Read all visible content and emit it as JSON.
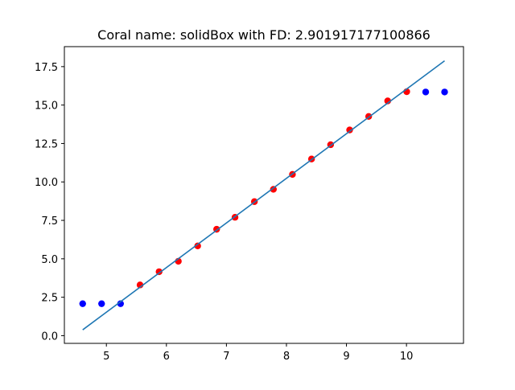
{
  "chart_data": {
    "type": "scatter",
    "title": "Coral name: solidBox with FD: 2.901917177100866",
    "xlabel": "",
    "ylabel": "",
    "xlim": [
      4.3,
      10.95
    ],
    "ylim": [
      -0.5,
      18.8
    ],
    "xticks": [
      5,
      6,
      7,
      8,
      9,
      10
    ],
    "yticks": [
      0.0,
      2.5,
      5.0,
      7.5,
      10.0,
      12.5,
      15.0,
      17.5
    ],
    "ytick_labels": [
      "0.0",
      "2.5",
      "5.0",
      "7.5",
      "10.0",
      "12.5",
      "15.0",
      "17.5"
    ],
    "grid": false,
    "series": [
      {
        "type": "scatter",
        "color": "#0000ff",
        "x": [
          4.605,
          4.92,
          5.236,
          10.32,
          10.635
        ],
        "y": [
          2.08,
          2.08,
          2.08,
          15.85,
          15.85
        ]
      },
      {
        "type": "scatter",
        "color": "#ff0000",
        "x": [
          5.561,
          5.878,
          6.199,
          6.521,
          6.837,
          7.143,
          7.466,
          7.783,
          8.1,
          8.418,
          8.736,
          9.053,
          9.37,
          9.687,
          10.004
        ],
        "y": [
          3.3,
          4.16,
          4.84,
          5.84,
          6.92,
          7.7,
          8.72,
          9.52,
          10.49,
          11.49,
          12.42,
          13.38,
          14.26,
          15.27,
          15.87
        ]
      },
      {
        "type": "line",
        "color": "#1f77b4",
        "x": [
          4.605,
          10.635
        ],
        "y": [
          0.38,
          17.88
        ]
      }
    ]
  }
}
